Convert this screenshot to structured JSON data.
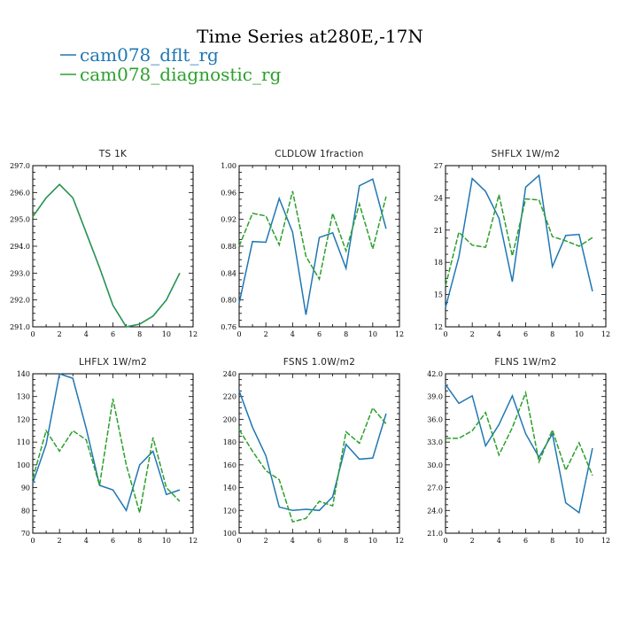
{
  "title": "Time Series at280E,-17N",
  "legend": [
    {
      "label": "cam078_dflt_rg",
      "color": "#1f77b4",
      "dash": ""
    },
    {
      "label": "cam078_diagnostic_rg",
      "color": "#2ca02c",
      "dash": "6,2"
    }
  ],
  "chart_data": [
    {
      "type": "line",
      "title": "TS   1K",
      "xlim": [
        0,
        12
      ],
      "ylim": [
        291.0,
        297.0
      ],
      "xticks": [
        "0",
        "2",
        "4",
        "6",
        "8",
        "10",
        "12"
      ],
      "yticks": [
        "291.0",
        "292.0",
        "293.0",
        "294.0",
        "295.0",
        "296.0",
        "297.0"
      ],
      "x": [
        0,
        1,
        2,
        3,
        4,
        5,
        6,
        7,
        8,
        9,
        10,
        11
      ],
      "series": [
        {
          "name": "cam078_dflt_rg",
          "values": [
            295.1,
            295.8,
            296.3,
            295.8,
            294.5,
            293.2,
            291.8,
            291.0,
            291.1,
            291.4,
            292.0,
            293.0
          ]
        },
        {
          "name": "cam078_diagnostic_rg",
          "values": [
            295.1,
            295.8,
            296.3,
            295.8,
            294.5,
            293.2,
            291.8,
            291.0,
            291.1,
            291.4,
            292.0,
            293.0
          ]
        }
      ]
    },
    {
      "type": "line",
      "title": "CLDLOW   1fraction",
      "xlim": [
        0,
        12
      ],
      "ylim": [
        0.76,
        1.0
      ],
      "xticks": [
        "0",
        "2",
        "4",
        "6",
        "8",
        "10",
        "12"
      ],
      "yticks": [
        "0.76",
        "0.80",
        "0.84",
        "0.88",
        "0.92",
        "0.96",
        "1.00"
      ],
      "x": [
        0,
        1,
        2,
        3,
        4,
        5,
        6,
        7,
        8,
        9,
        10,
        11
      ],
      "series": [
        {
          "name": "cam078_dflt_rg",
          "values": [
            0.795,
            0.887,
            0.886,
            0.951,
            0.901,
            0.778,
            0.893,
            0.9,
            0.847,
            0.97,
            0.98,
            0.906
          ]
        },
        {
          "name": "cam078_diagnostic_rg",
          "values": [
            0.88,
            0.929,
            0.925,
            0.882,
            0.962,
            0.865,
            0.831,
            0.929,
            0.873,
            0.943,
            0.876,
            0.954
          ]
        }
      ]
    },
    {
      "type": "line",
      "title": "SHFLX   1W/m2",
      "xlim": [
        0,
        12
      ],
      "ylim": [
        12,
        27
      ],
      "xticks": [
        "0",
        "2",
        "4",
        "6",
        "8",
        "10",
        "12"
      ],
      "yticks": [
        "12",
        "15",
        "18",
        "21",
        "24",
        "27"
      ],
      "x": [
        0,
        1,
        2,
        3,
        4,
        5,
        6,
        7,
        8,
        9,
        10,
        11
      ],
      "series": [
        {
          "name": "cam078_dflt_rg",
          "values": [
            13.8,
            18.5,
            25.8,
            24.6,
            22.1,
            16.2,
            25.0,
            26.1,
            17.6,
            20.5,
            20.6,
            15.3
          ]
        },
        {
          "name": "cam078_diagnostic_rg",
          "values": [
            15.8,
            20.8,
            19.6,
            19.4,
            24.3,
            18.6,
            23.9,
            23.8,
            20.4,
            20.0,
            19.5,
            20.3
          ]
        }
      ]
    },
    {
      "type": "line",
      "title": "LHFLX   1W/m2",
      "xlim": [
        0,
        12
      ],
      "ylim": [
        70,
        140
      ],
      "xticks": [
        "0",
        "2",
        "4",
        "6",
        "8",
        "10",
        "12"
      ],
      "yticks": [
        "70",
        "80",
        "90",
        "100",
        "110",
        "120",
        "130",
        "140"
      ],
      "x": [
        0,
        1,
        2,
        3,
        4,
        5,
        6,
        7,
        8,
        9,
        10,
        11
      ],
      "series": [
        {
          "name": "cam078_dflt_rg",
          "values": [
            92,
            109,
            140,
            138,
            116,
            91,
            89,
            80,
            100,
            106,
            87,
            89
          ]
        },
        {
          "name": "cam078_diagnostic_rg",
          "values": [
            94,
            115,
            106,
            115,
            111,
            91,
            129,
            100,
            79,
            112,
            90,
            84
          ]
        }
      ]
    },
    {
      "type": "line",
      "title": "FSNS   1.0W/m2",
      "xlim": [
        0,
        12
      ],
      "ylim": [
        100,
        240
      ],
      "xticks": [
        "0",
        "2",
        "4",
        "6",
        "8",
        "10",
        "12"
      ],
      "yticks": [
        "100",
        "120",
        "140",
        "160",
        "180",
        "200",
        "220",
        "240"
      ],
      "x": [
        0,
        1,
        2,
        3,
        4,
        5,
        6,
        7,
        8,
        9,
        10,
        11
      ],
      "series": [
        {
          "name": "cam078_dflt_rg",
          "values": [
            225,
            193,
            168,
            123,
            120,
            121,
            120,
            132,
            178,
            165,
            166,
            205
          ]
        },
        {
          "name": "cam078_diagnostic_rg",
          "values": [
            191,
            172,
            155,
            147,
            110,
            113,
            128,
            124,
            189,
            179,
            210,
            196
          ]
        }
      ]
    },
    {
      "type": "line",
      "title": "FLNS   1W/m2",
      "xlim": [
        0,
        12
      ],
      "ylim": [
        21.0,
        42.0
      ],
      "xticks": [
        "0",
        "2",
        "4",
        "6",
        "8",
        "10",
        "12"
      ],
      "yticks": [
        "21.0",
        "24.0",
        "27.0",
        "30.0",
        "33.0",
        "36.0",
        "39.0",
        "42.0"
      ],
      "x": [
        0,
        1,
        2,
        3,
        4,
        5,
        6,
        7,
        8,
        9,
        10,
        11
      ],
      "series": [
        {
          "name": "cam078_dflt_rg",
          "values": [
            40.6,
            38.1,
            39.1,
            32.5,
            35.3,
            39.1,
            34.1,
            31.0,
            34.1,
            25.0,
            23.7,
            32.2
          ]
        },
        {
          "name": "cam078_diagnostic_rg",
          "values": [
            33.5,
            33.5,
            34.5,
            36.9,
            31.3,
            34.9,
            39.5,
            30.4,
            34.6,
            29.3,
            32.9,
            28.6
          ]
        }
      ]
    }
  ]
}
